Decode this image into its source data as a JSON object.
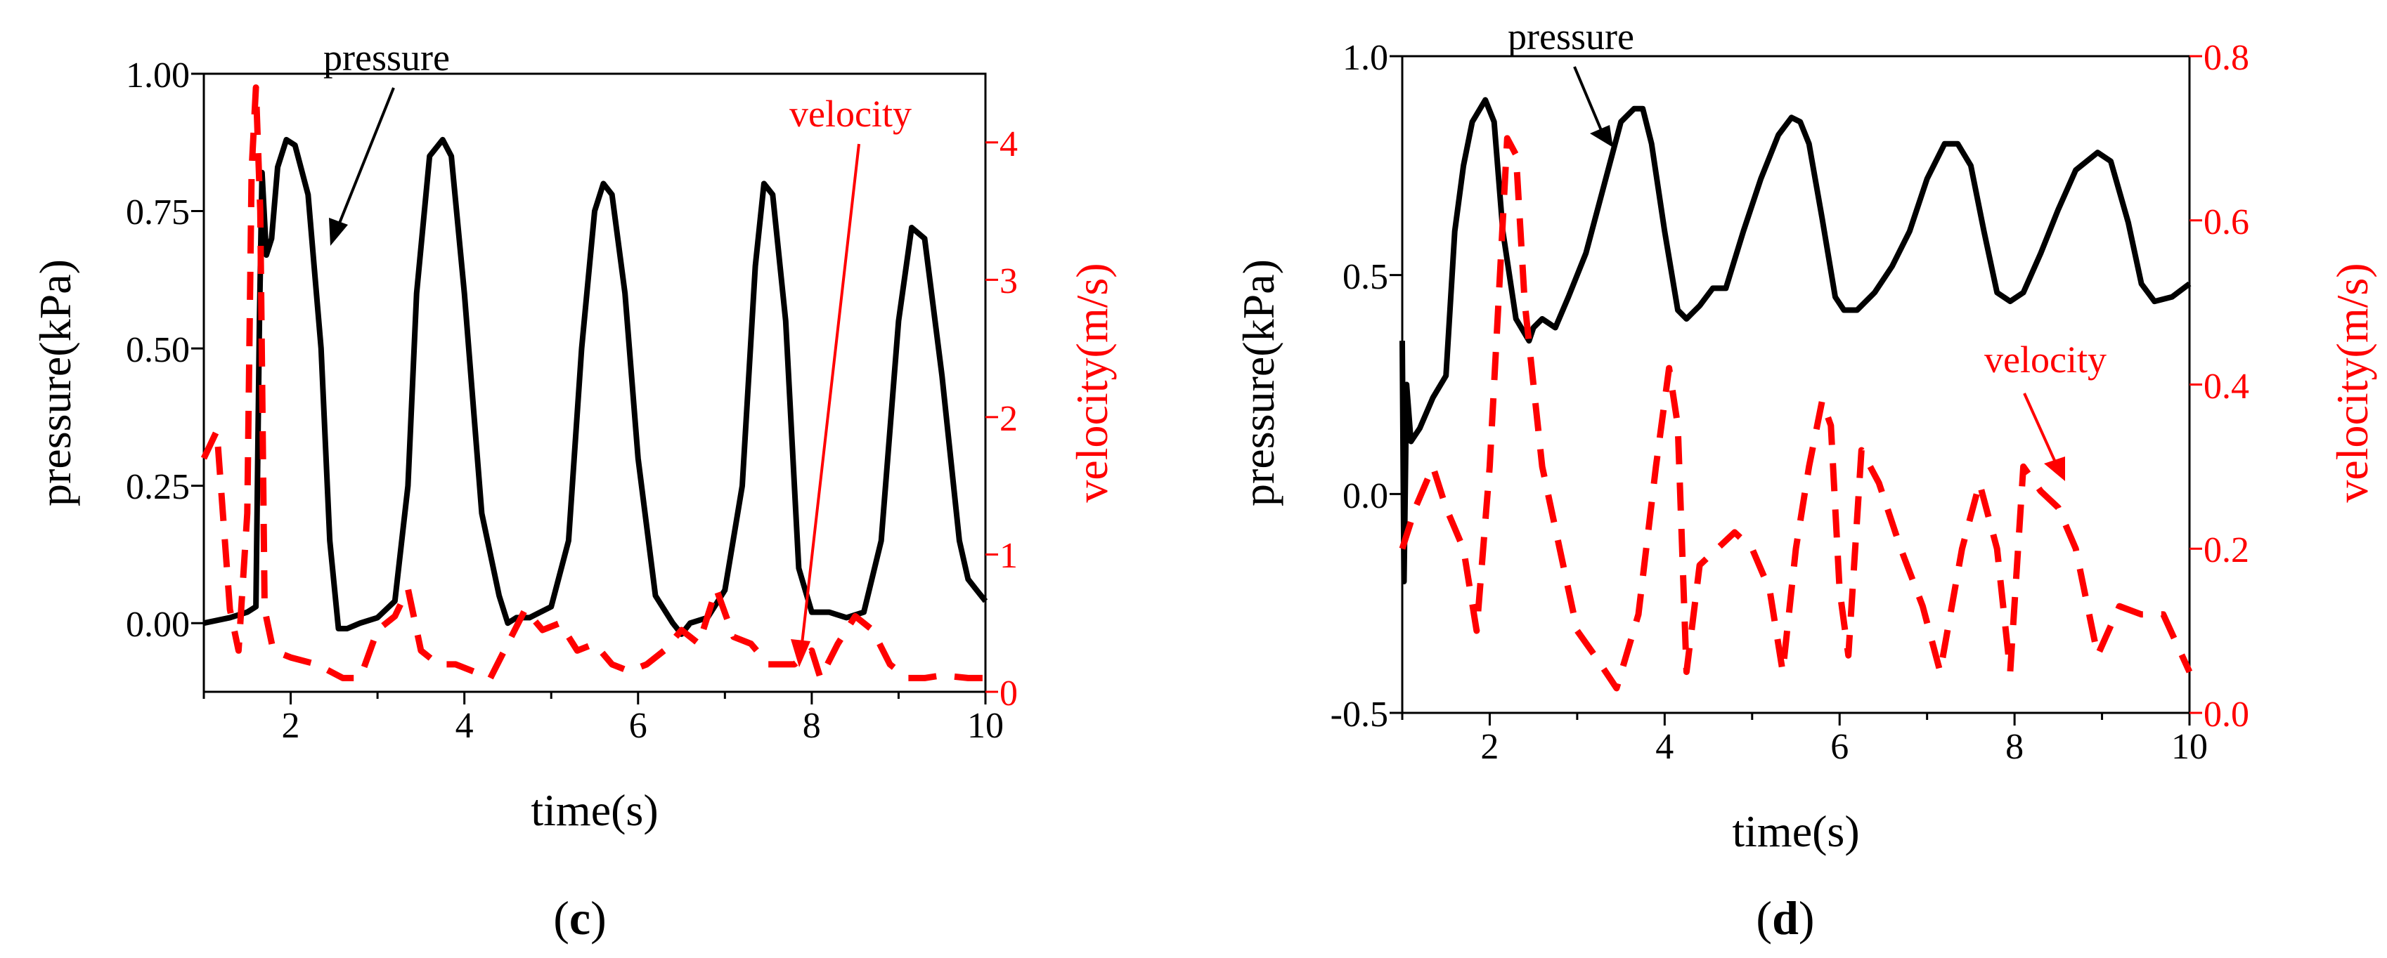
{
  "colors": {
    "pressure": "#000000",
    "velocity": "#ff0000"
  },
  "chart_data": [
    {
      "type": "line",
      "panel_label": "(c)",
      "panel_letter": "c",
      "xlabel": "time(s)",
      "ylabel": "pressure(kPa)",
      "y2label": "velocity(m/s)",
      "xlim": [
        1,
        10
      ],
      "ylim": [
        -0.125,
        1.0
      ],
      "y2lim": [
        0,
        4.5
      ],
      "xticks": [
        2,
        4,
        6,
        8,
        10
      ],
      "yticks": [
        0.0,
        0.25,
        0.5,
        0.75,
        1.0
      ],
      "ytick_labels": [
        "0.00",
        "0.25",
        "0.50",
        "0.75",
        "1.00"
      ],
      "y2ticks": [
        0,
        1,
        2,
        3,
        4
      ],
      "y2tick_labels": [
        "0",
        "1",
        "2",
        "3",
        "4"
      ],
      "annotations": [
        {
          "text": "pressure",
          "target_series": "pressure"
        },
        {
          "text": "velocity",
          "target_series": "velocity"
        }
      ],
      "series": [
        {
          "name": "pressure",
          "axis": "left",
          "style": "solid",
          "x": [
            1.0,
            1.3,
            1.5,
            1.6,
            1.64,
            1.67,
            1.72,
            1.78,
            1.85,
            1.95,
            2.05,
            2.2,
            2.35,
            2.45,
            2.55,
            2.65,
            2.8,
            3.0,
            3.2,
            3.35,
            3.45,
            3.6,
            3.75,
            3.85,
            4.0,
            4.2,
            4.4,
            4.5,
            4.6,
            4.75,
            5.0,
            5.2,
            5.35,
            5.5,
            5.6,
            5.7,
            5.85,
            6.0,
            6.2,
            6.4,
            6.5,
            6.6,
            6.8,
            7.0,
            7.2,
            7.35,
            7.45,
            7.55,
            7.7,
            7.85,
            8.0,
            8.2,
            8.4,
            8.6,
            8.8,
            9.0,
            9.15,
            9.3,
            9.5,
            9.7,
            9.8,
            9.9,
            10.0
          ],
          "y": [
            0.0,
            0.01,
            0.02,
            0.03,
            0.55,
            0.82,
            0.67,
            0.7,
            0.83,
            0.88,
            0.87,
            0.78,
            0.5,
            0.15,
            -0.01,
            -0.01,
            0.0,
            0.01,
            0.04,
            0.25,
            0.6,
            0.85,
            0.88,
            0.85,
            0.6,
            0.2,
            0.05,
            0.0,
            0.01,
            0.01,
            0.03,
            0.15,
            0.5,
            0.75,
            0.8,
            0.78,
            0.6,
            0.3,
            0.05,
            0.0,
            -0.02,
            0.0,
            0.01,
            0.06,
            0.25,
            0.65,
            0.8,
            0.78,
            0.55,
            0.1,
            0.02,
            0.02,
            0.01,
            0.02,
            0.15,
            0.55,
            0.72,
            0.7,
            0.45,
            0.15,
            0.08,
            0.06,
            0.04
          ]
        },
        {
          "name": "velocity",
          "axis": "right",
          "style": "dashed",
          "x": [
            1.0,
            1.15,
            1.3,
            1.4,
            1.5,
            1.55,
            1.6,
            1.65,
            1.7,
            1.8,
            2.0,
            2.3,
            2.6,
            2.8,
            3.0,
            3.2,
            3.35,
            3.5,
            3.7,
            3.9,
            4.1,
            4.3,
            4.5,
            4.7,
            4.9,
            5.1,
            5.3,
            5.5,
            5.7,
            5.9,
            6.1,
            6.3,
            6.5,
            6.7,
            6.9,
            7.1,
            7.3,
            7.5,
            7.8,
            8.0,
            8.1,
            8.3,
            8.5,
            8.7,
            8.9,
            9.1,
            9.3,
            9.5,
            9.8,
            10.0
          ],
          "y": [
            1.7,
            1.9,
            0.6,
            0.3,
            1.3,
            3.8,
            4.4,
            3.5,
            0.6,
            0.3,
            0.25,
            0.2,
            0.1,
            0.1,
            0.45,
            0.55,
            0.75,
            0.3,
            0.2,
            0.2,
            0.15,
            0.1,
            0.35,
            0.6,
            0.45,
            0.5,
            0.3,
            0.35,
            0.2,
            0.15,
            0.2,
            0.3,
            0.45,
            0.35,
            0.75,
            0.4,
            0.35,
            0.2,
            0.2,
            0.3,
            0.1,
            0.35,
            0.55,
            0.45,
            0.2,
            0.1,
            0.1,
            0.12,
            0.1,
            0.1
          ]
        }
      ]
    },
    {
      "type": "line",
      "panel_label": "(d)",
      "panel_letter": "d",
      "xlabel": "time(s)",
      "ylabel": "pressure(kPa)",
      "y2label": "velocity(m/s)",
      "xlim": [
        1,
        10
      ],
      "ylim": [
        -0.5,
        1.0
      ],
      "y2lim": [
        0,
        0.8
      ],
      "xticks": [
        2,
        4,
        6,
        8,
        10
      ],
      "yticks": [
        -0.5,
        0.0,
        0.5,
        1.0
      ],
      "ytick_labels": [
        "-0.5",
        "0.0",
        "0.5",
        "1.0"
      ],
      "y2ticks": [
        0,
        0.2,
        0.4,
        0.6,
        0.8
      ],
      "y2tick_labels": [
        "0.0",
        "0.2",
        "0.4",
        "0.6",
        "0.8"
      ],
      "annotations": [
        {
          "text": "pressure",
          "target_series": "pressure"
        },
        {
          "text": "velocity",
          "target_series": "velocity"
        }
      ],
      "series": [
        {
          "name": "pressure",
          "axis": "left",
          "style": "solid",
          "x": [
            1.0,
            1.02,
            1.05,
            1.1,
            1.2,
            1.35,
            1.5,
            1.6,
            1.7,
            1.8,
            1.95,
            2.05,
            2.15,
            2.3,
            2.45,
            2.5,
            2.6,
            2.75,
            2.9,
            3.1,
            3.3,
            3.5,
            3.65,
            3.75,
            3.85,
            4.0,
            4.15,
            4.25,
            4.4,
            4.55,
            4.7,
            4.9,
            5.1,
            5.3,
            5.45,
            5.55,
            5.65,
            5.8,
            5.95,
            6.05,
            6.2,
            6.4,
            6.6,
            6.8,
            7.0,
            7.2,
            7.35,
            7.5,
            7.65,
            7.8,
            7.95,
            8.1,
            8.3,
            8.5,
            8.7,
            8.95,
            9.1,
            9.3,
            9.45,
            9.6,
            9.8,
            10.0
          ],
          "y": [
            0.35,
            -0.2,
            0.25,
            0.12,
            0.15,
            0.22,
            0.27,
            0.6,
            0.75,
            0.85,
            0.9,
            0.85,
            0.6,
            0.4,
            0.35,
            0.38,
            0.4,
            0.38,
            0.45,
            0.55,
            0.7,
            0.85,
            0.88,
            0.88,
            0.8,
            0.6,
            0.42,
            0.4,
            0.43,
            0.47,
            0.47,
            0.6,
            0.72,
            0.82,
            0.86,
            0.85,
            0.8,
            0.63,
            0.45,
            0.42,
            0.42,
            0.46,
            0.52,
            0.6,
            0.72,
            0.8,
            0.8,
            0.75,
            0.6,
            0.46,
            0.44,
            0.46,
            0.55,
            0.65,
            0.74,
            0.78,
            0.76,
            0.62,
            0.48,
            0.44,
            0.45,
            0.48
          ]
        },
        {
          "name": "velocity",
          "axis": "right",
          "style": "dashed",
          "x": [
            1.0,
            1.15,
            1.35,
            1.5,
            1.7,
            1.85,
            2.0,
            2.1,
            2.2,
            2.3,
            2.4,
            2.6,
            2.8,
            3.0,
            3.2,
            3.45,
            3.7,
            3.9,
            4.05,
            4.15,
            4.25,
            4.4,
            4.6,
            4.8,
            5.0,
            5.2,
            5.35,
            5.5,
            5.65,
            5.8,
            5.9,
            6.0,
            6.1,
            6.25,
            6.45,
            6.7,
            6.95,
            7.15,
            7.4,
            7.6,
            7.8,
            7.95,
            8.1,
            8.3,
            8.5,
            8.7,
            8.95,
            9.2,
            9.45,
            9.7,
            10.0
          ],
          "y": [
            0.2,
            0.25,
            0.3,
            0.25,
            0.2,
            0.1,
            0.3,
            0.5,
            0.7,
            0.68,
            0.5,
            0.3,
            0.2,
            0.1,
            0.07,
            0.03,
            0.12,
            0.3,
            0.42,
            0.35,
            0.05,
            0.18,
            0.2,
            0.22,
            0.2,
            0.15,
            0.05,
            0.2,
            0.3,
            0.38,
            0.35,
            0.15,
            0.07,
            0.32,
            0.28,
            0.2,
            0.13,
            0.05,
            0.2,
            0.28,
            0.2,
            0.05,
            0.3,
            0.27,
            0.25,
            0.2,
            0.07,
            0.13,
            0.12,
            0.12,
            0.05
          ]
        }
      ]
    }
  ]
}
